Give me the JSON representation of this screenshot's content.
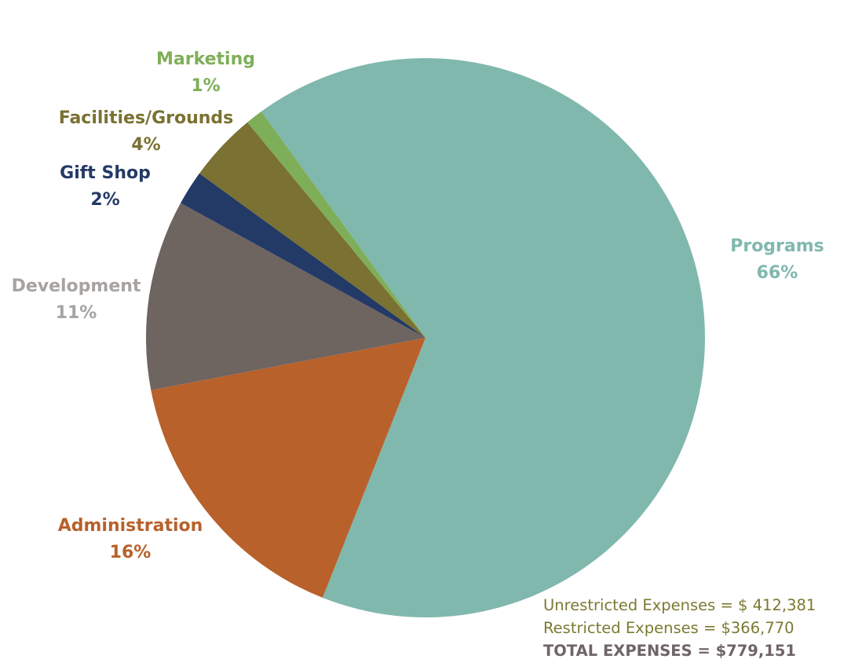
{
  "chart_data": {
    "type": "pie",
    "title": "",
    "slices": [
      {
        "label": "Programs",
        "pct_label": "66%",
        "value": 66,
        "color": "#80b8ae"
      },
      {
        "label": "Administration",
        "pct_label": "16%",
        "value": 16,
        "color": "#b8612b"
      },
      {
        "label": "Development",
        "pct_label": "11%",
        "value": 11,
        "color": "#6e6460"
      },
      {
        "label": "Gift Shop",
        "pct_label": "2%",
        "value": 2,
        "color": "#243a66"
      },
      {
        "label": "Facilities/Grounds",
        "pct_label": "4%",
        "value": 4,
        "color": "#7a7132"
      },
      {
        "label": "Marketing",
        "pct_label": "1%",
        "value": 1,
        "color": "#7fae59"
      }
    ],
    "label_colors": {
      "Programs": "#80b8ae",
      "Administration": "#b8612b",
      "Development": "#a6a3a1",
      "Gift Shop": "#243a66",
      "Facilities/Grounds": "#7a7132",
      "Marketing": "#7fae59"
    }
  },
  "totals": {
    "unrestricted": "Unrestricted Expenses = $ 412,381",
    "restricted": "Restricted Expenses = $366,770",
    "total": "TOTAL EXPENSES = $779,151"
  }
}
